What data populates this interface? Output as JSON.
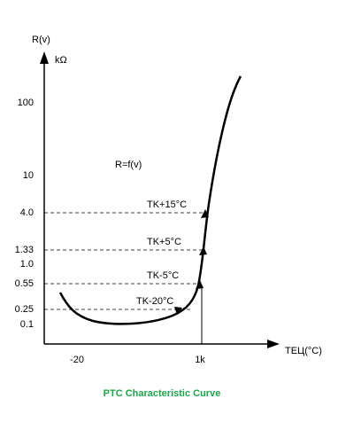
{
  "axis": {
    "y_label": "R(v)",
    "y_unit": "kΩ",
    "x_label": "TEЦ(°C)",
    "y_ticks": [
      "100",
      "10",
      "4.0",
      "1.33",
      "1.0",
      "0.55",
      "0.25",
      "0.1"
    ],
    "x_ticks": [
      "-20",
      "1k"
    ]
  },
  "function_label": "R=f(v)",
  "markers": [
    "TK+15°C",
    "TK+5°C",
    "TK-5°C",
    "TK-20°C"
  ],
  "caption": "PTC Characteristic Curve"
}
